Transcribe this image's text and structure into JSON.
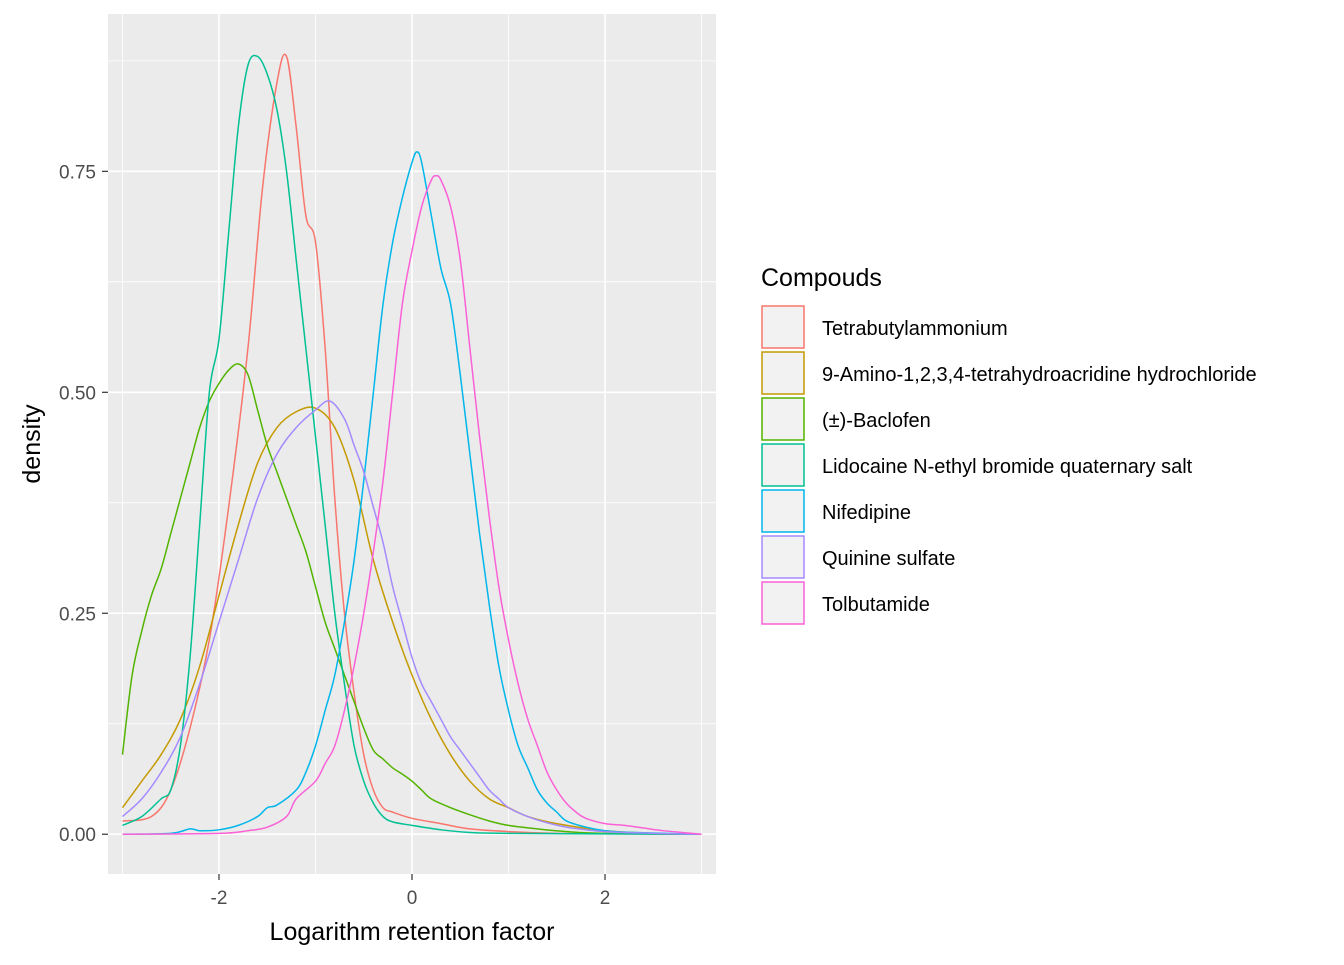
{
  "chart_data": {
    "type": "line",
    "title": "",
    "xlabel": "Logarithm retention factor",
    "ylabel": "density",
    "xlim": [
      -3.15,
      3.15
    ],
    "ylim": [
      -0.045,
      0.928
    ],
    "x_ticks": [
      -2,
      0,
      2
    ],
    "x_tick_labels": [
      "-2",
      "0",
      "2"
    ],
    "y_ticks": [
      0,
      0.25,
      0.5,
      0.75
    ],
    "y_tick_labels": [
      "0.00",
      "0.25",
      "0.50",
      "0.75"
    ],
    "grid": true,
    "legend_title": "Compouds",
    "legend_position": "right",
    "series": [
      {
        "name": "Tetrabutylammonium",
        "color": "#F8766D",
        "points": [
          [
            -3,
            0.015
          ],
          [
            -2.7,
            0.02
          ],
          [
            -2.5,
            0.05
          ],
          [
            -2.3,
            0.12
          ],
          [
            -2.1,
            0.22
          ],
          [
            -1.9,
            0.37
          ],
          [
            -1.7,
            0.55
          ],
          [
            -1.55,
            0.73
          ],
          [
            -1.4,
            0.85
          ],
          [
            -1.3,
            0.88
          ],
          [
            -1.2,
            0.8
          ],
          [
            -1.1,
            0.7
          ],
          [
            -1.0,
            0.67
          ],
          [
            -0.9,
            0.55
          ],
          [
            -0.8,
            0.38
          ],
          [
            -0.7,
            0.25
          ],
          [
            -0.6,
            0.16
          ],
          [
            -0.5,
            0.09
          ],
          [
            -0.4,
            0.05
          ],
          [
            -0.3,
            0.03
          ],
          [
            -0.2,
            0.025
          ],
          [
            0,
            0.018
          ],
          [
            0.3,
            0.012
          ],
          [
            0.6,
            0.006
          ],
          [
            1.0,
            0.003
          ],
          [
            1.5,
            0.001
          ],
          [
            2,
            0.0005
          ],
          [
            3,
            0
          ]
        ]
      },
      {
        "name": "9-Amino-1,2,3,4-tetrahydroacridine hydrochloride",
        "color": "#C49A00",
        "points": [
          [
            -3,
            0.03
          ],
          [
            -2.8,
            0.06
          ],
          [
            -2.6,
            0.09
          ],
          [
            -2.4,
            0.13
          ],
          [
            -2.2,
            0.19
          ],
          [
            -2,
            0.27
          ],
          [
            -1.8,
            0.35
          ],
          [
            -1.6,
            0.42
          ],
          [
            -1.4,
            0.46
          ],
          [
            -1.2,
            0.478
          ],
          [
            -1.0,
            0.482
          ],
          [
            -0.8,
            0.46
          ],
          [
            -0.6,
            0.4
          ],
          [
            -0.4,
            0.31
          ],
          [
            -0.2,
            0.24
          ],
          [
            0,
            0.18
          ],
          [
            0.2,
            0.13
          ],
          [
            0.4,
            0.09
          ],
          [
            0.6,
            0.06
          ],
          [
            0.8,
            0.04
          ],
          [
            1.0,
            0.03
          ],
          [
            1.2,
            0.02
          ],
          [
            1.5,
            0.012
          ],
          [
            2,
            0.004
          ],
          [
            2.5,
            0.001
          ],
          [
            3,
            0
          ]
        ]
      },
      {
        "name": "(±)-Baclofen",
        "color": "#53B400",
        "points": [
          [
            -3,
            0.09
          ],
          [
            -2.9,
            0.18
          ],
          [
            -2.8,
            0.23
          ],
          [
            -2.7,
            0.27
          ],
          [
            -2.6,
            0.3
          ],
          [
            -2.5,
            0.34
          ],
          [
            -2.4,
            0.38
          ],
          [
            -2.3,
            0.42
          ],
          [
            -2.2,
            0.46
          ],
          [
            -2.1,
            0.49
          ],
          [
            -2.0,
            0.51
          ],
          [
            -1.9,
            0.525
          ],
          [
            -1.8,
            0.532
          ],
          [
            -1.7,
            0.52
          ],
          [
            -1.6,
            0.48
          ],
          [
            -1.5,
            0.44
          ],
          [
            -1.4,
            0.41
          ],
          [
            -1.3,
            0.38
          ],
          [
            -1.2,
            0.35
          ],
          [
            -1.1,
            0.32
          ],
          [
            -1.0,
            0.28
          ],
          [
            -0.9,
            0.24
          ],
          [
            -0.8,
            0.21
          ],
          [
            -0.7,
            0.18
          ],
          [
            -0.6,
            0.15
          ],
          [
            -0.5,
            0.12
          ],
          [
            -0.4,
            0.095
          ],
          [
            -0.3,
            0.085
          ],
          [
            -0.2,
            0.075
          ],
          [
            -0.1,
            0.068
          ],
          [
            0,
            0.06
          ],
          [
            0.1,
            0.05
          ],
          [
            0.2,
            0.04
          ],
          [
            0.4,
            0.03
          ],
          [
            0.6,
            0.022
          ],
          [
            0.8,
            0.015
          ],
          [
            1.0,
            0.01
          ],
          [
            1.3,
            0.006
          ],
          [
            1.6,
            0.003
          ],
          [
            2,
            0.001
          ],
          [
            3,
            0
          ]
        ]
      },
      {
        "name": "Lidocaine N-ethyl bromide quaternary salt",
        "color": "#00C094",
        "points": [
          [
            -3,
            0.01
          ],
          [
            -2.8,
            0.02
          ],
          [
            -2.6,
            0.04
          ],
          [
            -2.5,
            0.05
          ],
          [
            -2.4,
            0.1
          ],
          [
            -2.3,
            0.2
          ],
          [
            -2.2,
            0.35
          ],
          [
            -2.1,
            0.5
          ],
          [
            -2.0,
            0.56
          ],
          [
            -1.9,
            0.68
          ],
          [
            -1.8,
            0.8
          ],
          [
            -1.7,
            0.87
          ],
          [
            -1.6,
            0.88
          ],
          [
            -1.5,
            0.86
          ],
          [
            -1.4,
            0.82
          ],
          [
            -1.3,
            0.75
          ],
          [
            -1.2,
            0.65
          ],
          [
            -1.1,
            0.55
          ],
          [
            -1.0,
            0.45
          ],
          [
            -0.9,
            0.35
          ],
          [
            -0.8,
            0.25
          ],
          [
            -0.7,
            0.17
          ],
          [
            -0.6,
            0.1
          ],
          [
            -0.5,
            0.06
          ],
          [
            -0.4,
            0.035
          ],
          [
            -0.3,
            0.02
          ],
          [
            -0.2,
            0.014
          ],
          [
            0,
            0.01
          ],
          [
            0.3,
            0.005
          ],
          [
            0.6,
            0.002
          ],
          [
            1,
            0.001
          ],
          [
            3,
            0
          ]
        ]
      },
      {
        "name": "Nifedipine",
        "color": "#00B6EB",
        "points": [
          [
            -3,
            0
          ],
          [
            -2.5,
            0.001
          ],
          [
            -2.3,
            0.006
          ],
          [
            -2.2,
            0.004
          ],
          [
            -2.0,
            0.005
          ],
          [
            -1.8,
            0.01
          ],
          [
            -1.6,
            0.02
          ],
          [
            -1.5,
            0.03
          ],
          [
            -1.4,
            0.033
          ],
          [
            -1.2,
            0.05
          ],
          [
            -1.1,
            0.07
          ],
          [
            -1.0,
            0.1
          ],
          [
            -0.9,
            0.14
          ],
          [
            -0.8,
            0.18
          ],
          [
            -0.7,
            0.24
          ],
          [
            -0.6,
            0.31
          ],
          [
            -0.5,
            0.4
          ],
          [
            -0.4,
            0.5
          ],
          [
            -0.3,
            0.6
          ],
          [
            -0.2,
            0.67
          ],
          [
            -0.1,
            0.72
          ],
          [
            0,
            0.76
          ],
          [
            0.05,
            0.772
          ],
          [
            0.1,
            0.76
          ],
          [
            0.2,
            0.7
          ],
          [
            0.3,
            0.64
          ],
          [
            0.4,
            0.6
          ],
          [
            0.5,
            0.52
          ],
          [
            0.6,
            0.43
          ],
          [
            0.7,
            0.34
          ],
          [
            0.8,
            0.26
          ],
          [
            0.9,
            0.19
          ],
          [
            1.0,
            0.14
          ],
          [
            1.1,
            0.1
          ],
          [
            1.2,
            0.075
          ],
          [
            1.3,
            0.05
          ],
          [
            1.4,
            0.035
          ],
          [
            1.5,
            0.025
          ],
          [
            1.6,
            0.015
          ],
          [
            1.8,
            0.008
          ],
          [
            2,
            0.004
          ],
          [
            2.3,
            0.002
          ],
          [
            3,
            0
          ]
        ]
      },
      {
        "name": "Quinine sulfate",
        "color": "#A58AFF",
        "points": [
          [
            -3,
            0.02
          ],
          [
            -2.8,
            0.04
          ],
          [
            -2.6,
            0.07
          ],
          [
            -2.4,
            0.11
          ],
          [
            -2.2,
            0.17
          ],
          [
            -2,
            0.24
          ],
          [
            -1.8,
            0.31
          ],
          [
            -1.6,
            0.38
          ],
          [
            -1.4,
            0.43
          ],
          [
            -1.2,
            0.46
          ],
          [
            -1.0,
            0.48
          ],
          [
            -0.85,
            0.49
          ],
          [
            -0.7,
            0.47
          ],
          [
            -0.6,
            0.44
          ],
          [
            -0.5,
            0.41
          ],
          [
            -0.4,
            0.37
          ],
          [
            -0.3,
            0.33
          ],
          [
            -0.2,
            0.28
          ],
          [
            -0.1,
            0.24
          ],
          [
            0,
            0.2
          ],
          [
            0.1,
            0.17
          ],
          [
            0.2,
            0.15
          ],
          [
            0.3,
            0.13
          ],
          [
            0.4,
            0.11
          ],
          [
            0.5,
            0.095
          ],
          [
            0.6,
            0.08
          ],
          [
            0.7,
            0.065
          ],
          [
            0.8,
            0.05
          ],
          [
            0.9,
            0.04
          ],
          [
            1.0,
            0.03
          ],
          [
            1.2,
            0.02
          ],
          [
            1.4,
            0.013
          ],
          [
            1.6,
            0.008
          ],
          [
            1.8,
            0.005
          ],
          [
            2,
            0.003
          ],
          [
            2.5,
            0.001
          ],
          [
            3,
            0
          ]
        ]
      },
      {
        "name": "Tolbutamide",
        "color": "#FB61D7",
        "points": [
          [
            -3,
            0
          ],
          [
            -2,
            0.001
          ],
          [
            -1.7,
            0.004
          ],
          [
            -1.5,
            0.008
          ],
          [
            -1.3,
            0.02
          ],
          [
            -1.2,
            0.04
          ],
          [
            -1.0,
            0.06
          ],
          [
            -0.9,
            0.08
          ],
          [
            -0.8,
            0.1
          ],
          [
            -0.7,
            0.14
          ],
          [
            -0.6,
            0.19
          ],
          [
            -0.5,
            0.25
          ],
          [
            -0.4,
            0.32
          ],
          [
            -0.3,
            0.4
          ],
          [
            -0.2,
            0.5
          ],
          [
            -0.1,
            0.6
          ],
          [
            0,
            0.66
          ],
          [
            0.1,
            0.71
          ],
          [
            0.2,
            0.74
          ],
          [
            0.25,
            0.745
          ],
          [
            0.3,
            0.74
          ],
          [
            0.4,
            0.71
          ],
          [
            0.5,
            0.65
          ],
          [
            0.6,
            0.55
          ],
          [
            0.7,
            0.45
          ],
          [
            0.8,
            0.36
          ],
          [
            0.9,
            0.28
          ],
          [
            1.0,
            0.22
          ],
          [
            1.1,
            0.17
          ],
          [
            1.2,
            0.13
          ],
          [
            1.3,
            0.1
          ],
          [
            1.4,
            0.07
          ],
          [
            1.5,
            0.05
          ],
          [
            1.6,
            0.035
          ],
          [
            1.7,
            0.025
          ],
          [
            1.8,
            0.018
          ],
          [
            2,
            0.012
          ],
          [
            2.2,
            0.01
          ],
          [
            2.4,
            0.007
          ],
          [
            2.6,
            0.004
          ],
          [
            2.8,
            0.002
          ],
          [
            3,
            0
          ]
        ]
      }
    ]
  }
}
